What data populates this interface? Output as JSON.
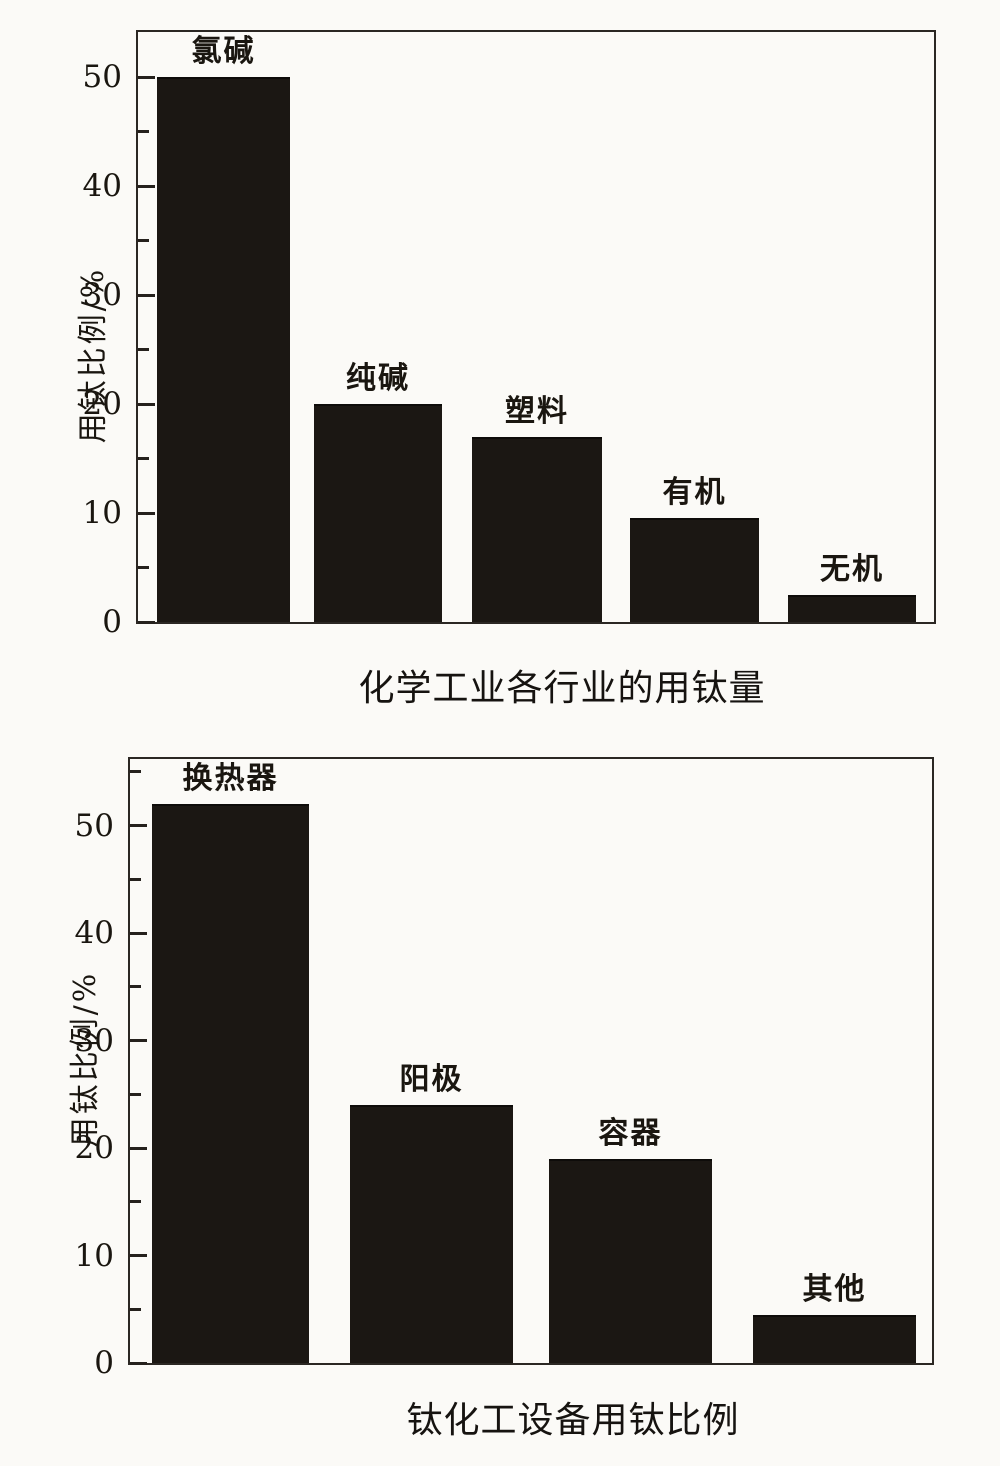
{
  "page": {
    "background": "#fbfaf7",
    "bar_color": "#1b1713",
    "axis_color": "#2b2723"
  },
  "chart_data": [
    {
      "type": "bar",
      "title": "化学工业各行业的用钛量",
      "ylabel": "用钛比例/%",
      "categories": [
        "氯碱",
        "纯碱",
        "塑料",
        "有机",
        "无机"
      ],
      "values": [
        50,
        20,
        17,
        9.5,
        2.5
      ],
      "ylim": [
        0,
        54
      ],
      "yticks": [
        0,
        10,
        20,
        30,
        40,
        50
      ],
      "minor_tick_interval": 5,
      "grid": false,
      "legend": false,
      "bar_color": "#1b1713"
    },
    {
      "type": "bar",
      "title": "钛化工设备用钛比例",
      "ylabel": "用钛比例/%",
      "categories": [
        "换热器",
        "阳极",
        "容器",
        "其他"
      ],
      "values": [
        52,
        24,
        19,
        4.5
      ],
      "ylim": [
        0,
        56
      ],
      "yticks": [
        0,
        10,
        20,
        30,
        40,
        50
      ],
      "minor_tick_interval": 5,
      "grid": false,
      "legend": false,
      "bar_color": "#1b1713"
    }
  ]
}
